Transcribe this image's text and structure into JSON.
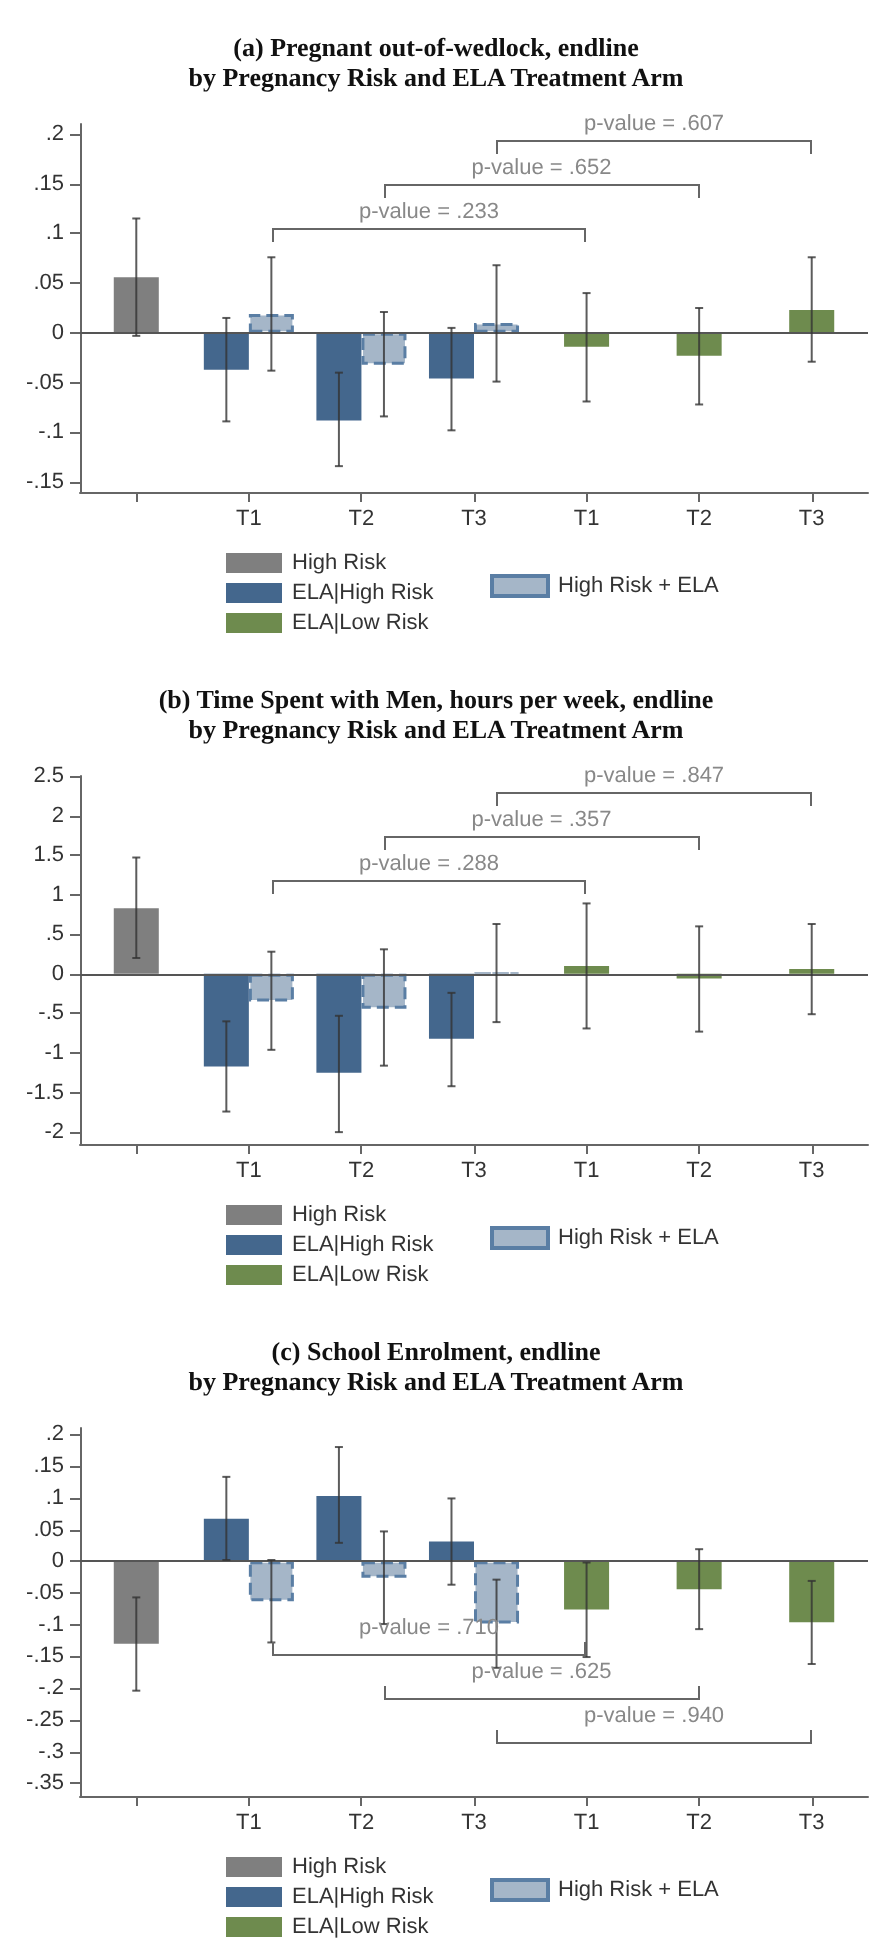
{
  "chart_data": [
    {
      "type": "bar",
      "title": "(a) Pregnant out-of-wedlock, endline",
      "subtitle": "by Pregnancy Risk and ELA Treatment Arm",
      "categories": [
        null,
        "T1",
        "T2",
        "T3",
        "T1",
        "T2",
        "T3"
      ],
      "series": [
        {
          "name": "High Risk",
          "color": "#7f7f7f",
          "values": [
            0.056,
            null,
            null,
            null,
            null,
            null,
            null
          ],
          "errors": [
            [
              -0.003,
              0.115
            ],
            null,
            null,
            null,
            null,
            null,
            null
          ]
        },
        {
          "name": "ELA|High Risk",
          "color": "#44678d",
          "values": [
            null,
            -0.037,
            -0.088,
            -0.046,
            null,
            null,
            null
          ],
          "errors": [
            null,
            [
              -0.089,
              0.015
            ],
            [
              -0.134,
              -0.04
            ],
            [
              -0.098,
              0.005
            ],
            null,
            null,
            null
          ]
        },
        {
          "name": "ELA|Low Risk",
          "color": "#6e8b4e",
          "values": [
            null,
            null,
            null,
            null,
            -0.014,
            -0.023,
            0.023
          ],
          "errors": [
            null,
            null,
            null,
            null,
            [
              -0.069,
              0.04
            ],
            [
              -0.072,
              0.025
            ],
            [
              -0.029,
              0.076
            ]
          ]
        },
        {
          "name": "High Risk + ELA",
          "color": "#a5b6c8",
          "line_style": "dashed",
          "values": [
            null,
            0.019,
            -0.032,
            0.01,
            null,
            null,
            null
          ],
          "errors": [
            null,
            [
              -0.038,
              0.076
            ],
            [
              -0.084,
              0.021
            ],
            [
              -0.049,
              0.068
            ],
            null,
            null,
            null
          ]
        }
      ],
      "ylim": [
        -0.16,
        0.21
      ],
      "yticks": [
        {
          "value": 0.2,
          "label": ".2"
        },
        {
          "value": 0.15,
          "label": ".15"
        },
        {
          "value": 0.1,
          "label": ".1"
        },
        {
          "value": 0.05,
          "label": ".05"
        },
        0,
        {
          "value": -0.05,
          "label": "-.05"
        },
        {
          "value": -0.1,
          "label": "-.1"
        },
        {
          "value": -0.15,
          "label": "-.15"
        }
      ],
      "ref_lines": [
        {
          "axis": "y",
          "value": 0,
          "color": "#555555"
        }
      ],
      "annotations": [
        "p-value = .607",
        "p-value = .652",
        "p-value = .233"
      ],
      "grid": false,
      "legend": "bottom"
    },
    {
      "type": "bar",
      "title": "(b) Time Spent with Men, hours per week, endline",
      "subtitle": "by Pregnancy Risk and ELA Treatment Arm",
      "categories": [
        null,
        "T1",
        "T2",
        "T3",
        "T1",
        "T2",
        "T3"
      ],
      "series": [
        {
          "name": "High Risk",
          "color": "#7f7f7f",
          "values": [
            0.83,
            null,
            null,
            null,
            null,
            null,
            null
          ],
          "errors": [
            [
              0.2,
              1.47
            ],
            null,
            null,
            null,
            null,
            null,
            null
          ]
        },
        {
          "name": "ELA|High Risk",
          "color": "#44678d",
          "values": [
            null,
            -1.17,
            -1.25,
            -0.82,
            null,
            null,
            null
          ],
          "errors": [
            null,
            [
              -1.74,
              -0.6
            ],
            [
              -2.0,
              -0.53
            ],
            [
              -1.42,
              -0.24
            ],
            null,
            null,
            null
          ]
        },
        {
          "name": "ELA|Low Risk",
          "color": "#6e8b4e",
          "values": [
            null,
            null,
            null,
            null,
            0.1,
            -0.06,
            0.06
          ],
          "errors": [
            null,
            null,
            null,
            null,
            [
              -0.69,
              0.89
            ],
            [
              -0.73,
              0.6
            ],
            [
              -0.51,
              0.63
            ]
          ]
        },
        {
          "name": "High Risk + ELA",
          "color": "#a5b6c8",
          "line_style": "dashed",
          "values": [
            null,
            -0.35,
            -0.44,
            0.01,
            null,
            null,
            null
          ],
          "errors": [
            null,
            [
              -0.96,
              0.28
            ],
            [
              -1.16,
              0.31
            ],
            [
              -0.61,
              0.63
            ],
            null,
            null,
            null
          ]
        }
      ],
      "ylim": [
        -2.15,
        2.5
      ],
      "yticks": [
        2.5,
        2,
        1.5,
        1,
        {
          "value": 0.5,
          "label": ".5"
        },
        0,
        {
          "value": -0.5,
          "label": "-.5"
        },
        -1,
        -1.5,
        -2
      ],
      "ref_lines": [
        {
          "axis": "y",
          "value": 0,
          "color": "#555555"
        }
      ],
      "annotations": [
        "p-value = .847",
        "p-value = .357",
        "p-value = .288"
      ],
      "grid": false,
      "legend": "bottom"
    },
    {
      "type": "bar",
      "title": "(c) School Enrolment, endline",
      "subtitle": "by Pregnancy Risk and ELA Treatment Arm",
      "categories": [
        null,
        "T1",
        "T2",
        "T3",
        "T1",
        "T2",
        "T3"
      ],
      "series": [
        {
          "name": "High Risk",
          "color": "#7f7f7f",
          "values": [
            -0.13,
            null,
            null,
            null,
            null,
            null,
            null
          ],
          "errors": [
            [
              -0.204,
              -0.057
            ],
            null,
            null,
            null,
            null,
            null,
            null
          ]
        },
        {
          "name": "ELA|High Risk",
          "color": "#44678d",
          "values": [
            null,
            0.067,
            0.103,
            0.031,
            null,
            null,
            null
          ],
          "errors": [
            null,
            [
              0.002,
              0.133
            ],
            [
              0.029,
              0.18
            ],
            [
              -0.037,
              0.099
            ],
            null,
            null,
            null
          ]
        },
        {
          "name": "ELA|Low Risk",
          "color": "#6e8b4e",
          "values": [
            null,
            null,
            null,
            null,
            -0.076,
            -0.044,
            -0.096
          ],
          "errors": [
            null,
            null,
            null,
            null,
            [
              -0.151,
              -0.002
            ],
            [
              -0.107,
              0.019
            ],
            [
              -0.162,
              -0.031
            ]
          ]
        },
        {
          "name": "High Risk + ELA",
          "color": "#a5b6c8",
          "line_style": "dashed",
          "values": [
            null,
            -0.063,
            -0.026,
            -0.098,
            null,
            null,
            null
          ],
          "errors": [
            null,
            [
              -0.128,
              0.002
            ],
            [
              -0.099,
              0.047
            ],
            [
              -0.168,
              -0.029
            ],
            null,
            null,
            null
          ]
        }
      ],
      "ylim": [
        -0.37,
        0.21
      ],
      "yticks": [
        {
          "value": 0.2,
          "label": ".2"
        },
        {
          "value": 0.15,
          "label": ".15"
        },
        {
          "value": 0.1,
          "label": ".1"
        },
        {
          "value": 0.05,
          "label": ".05"
        },
        0,
        {
          "value": -0.05,
          "label": "-.05"
        },
        {
          "value": -0.1,
          "label": "-.1"
        },
        {
          "value": -0.15,
          "label": "-.15"
        },
        {
          "value": -0.2,
          "label": "-.2"
        },
        {
          "value": -0.25,
          "label": "-.25"
        },
        {
          "value": -0.3,
          "label": "-.3"
        },
        {
          "value": -0.35,
          "label": "-.35"
        }
      ],
      "ref_lines": [
        {
          "axis": "y",
          "value": 0,
          "color": "#555555"
        }
      ],
      "annotations": [
        "p-value = .710",
        "p-value = .625",
        "p-value = .940"
      ],
      "grid": false,
      "legend": "bottom"
    }
  ]
}
